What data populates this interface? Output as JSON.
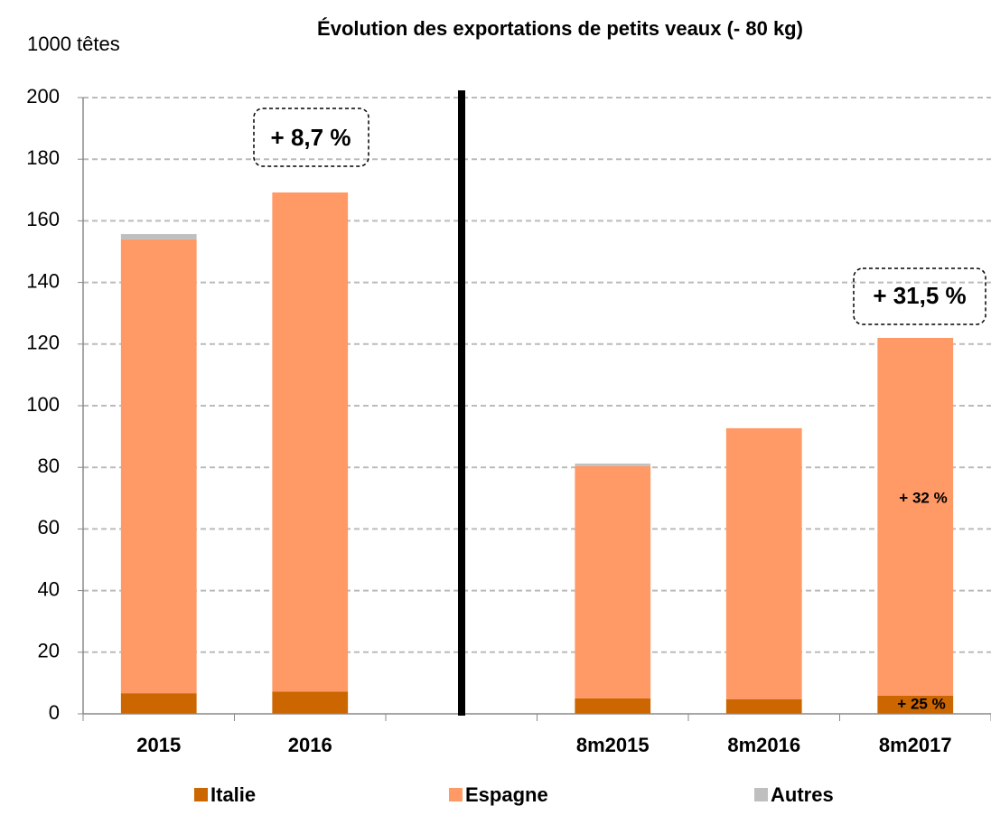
{
  "chart_data": {
    "type": "stacked-bar",
    "title": "Évolution des exportations de petits veaux (- 80 kg)",
    "y_label": "1000 têtes",
    "categories": [
      "2015",
      "2016",
      null,
      "8m2015",
      "8m2016",
      "8m2017"
    ],
    "series": [
      {
        "name": "Italie",
        "color": "#cc6600",
        "values": [
          6.7,
          7.2,
          null,
          5.0,
          4.7,
          5.9
        ]
      },
      {
        "name": "Espagne",
        "color": "#ff9966",
        "values": [
          147.3,
          162.0,
          null,
          75.4,
          88.0,
          116.1
        ]
      },
      {
        "name": "Autres",
        "color": "#bfbfbf",
        "values": [
          1.7,
          0,
          null,
          0.8,
          0,
          0
        ]
      }
    ],
    "ylim": [
      0,
      200
    ],
    "yticks": [
      0,
      20,
      40,
      60,
      80,
      100,
      120,
      140,
      160,
      180,
      200
    ],
    "grid": true,
    "annotations": [
      "+ 8,7 %",
      "+ 31,5 %",
      "+ 32 %",
      "+ 25 %"
    ]
  }
}
